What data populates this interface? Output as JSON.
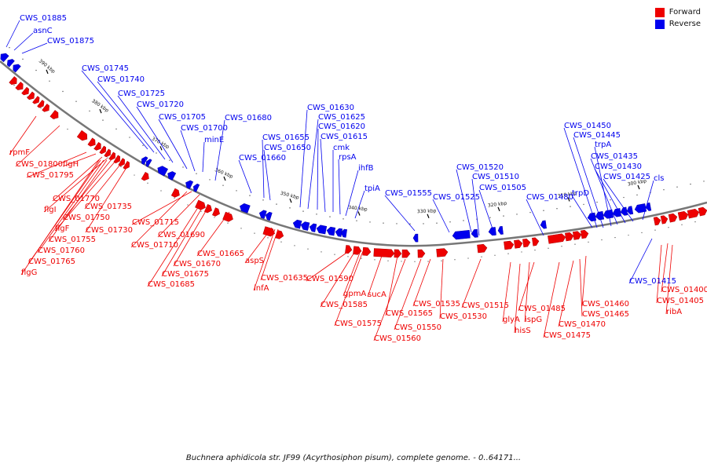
{
  "caption": "Buchnera aphidicola str. JF99 (Acyrthosiphon pisum), complete genome. - 0..64171...",
  "legend": [
    {
      "label": "Forward",
      "color": "#ee0000"
    },
    {
      "label": "Reverse",
      "color": "#0000ee"
    }
  ],
  "colors": {
    "forward": "#ee0000",
    "reverse": "#0000ee",
    "backbone": "#777777"
  },
  "ticks": [
    "390 kbp",
    "380 kbp",
    "370 kbp",
    "360 kbp",
    "350 kbp",
    "340 kbp",
    "330 kbp",
    "320 kbp",
    "310 kbp",
    "300 kbp"
  ],
  "reverse_labels": [
    "CWS_01885",
    "asnC",
    "CWS_01875",
    "CWS_01745",
    "CWS_01740",
    "CWS_01725",
    "CWS_01720",
    "CWS_01705",
    "CWS_01700",
    "minE",
    "CWS_01680",
    "CWS_01655",
    "CWS_01650",
    "CWS_01660",
    "CWS_01630",
    "CWS_01625",
    "CWS_01620",
    "CWS_01615",
    "cmk",
    "rpsA",
    "ihfB",
    "tpiA",
    "CWS_01555",
    "CWS_01520",
    "CWS_01525",
    "CWS_01510",
    "CWS_01505",
    "CWS_01480",
    "CWS_01450",
    "CWS_01445",
    "trpA",
    "trpD",
    "CWS_01435",
    "CWS_01430",
    "CWS_01425",
    "cls",
    "CWS_01415"
  ],
  "forward_labels": [
    "rpmF",
    "CWS_01800",
    "CWS_01795",
    "flgH",
    "CWS_01770",
    "flgI",
    "CWS_01735",
    "flgF",
    "CWS_01750",
    "CWS_01730",
    "CWS_01755",
    "CWS_01760",
    "CWS_01765",
    "flgG",
    "CWS_01715",
    "CWS_01690",
    "CWS_01710",
    "CWS_01665",
    "CWS_01670",
    "CWS_01675",
    "CWS_01685",
    "aspS",
    "CWS_01635",
    "infA",
    "CWS_01590",
    "gpmA",
    "CWS_01585",
    "sucA",
    "CWS_01575",
    "CWS_01565",
    "CWS_01535",
    "CWS_01530",
    "CWS_01550",
    "CWS_01560",
    "CWS_01515",
    "glyA",
    "CWS_01485",
    "hisS",
    "ispG",
    "CWS_01475",
    "CWS_01470",
    "CWS_01465",
    "CWS_01460",
    "CWS_01400",
    "CWS_01405",
    "ribA"
  ]
}
